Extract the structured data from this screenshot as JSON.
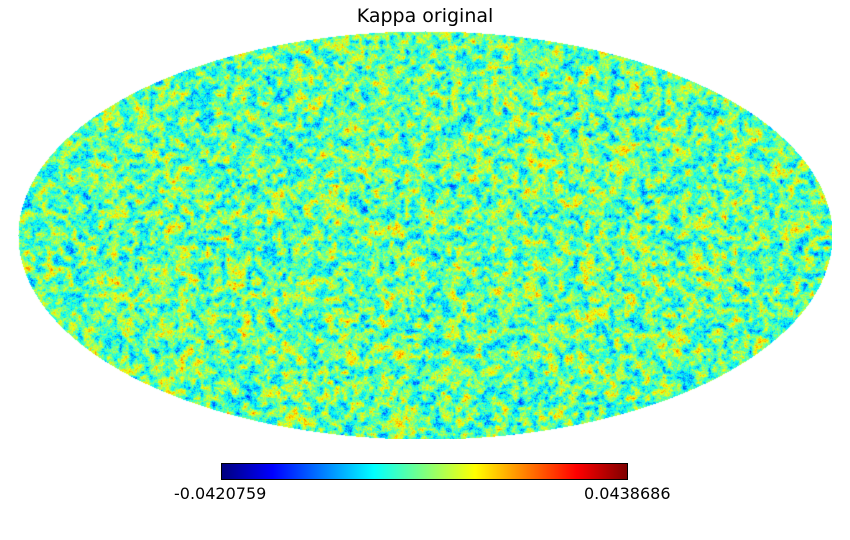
{
  "chart_data": {
    "type": "heatmap",
    "projection": "mollweide",
    "title": "Kappa original",
    "colormap": "jet",
    "colorbar": {
      "min_label": "-0.0420759",
      "max_label": "0.0438686",
      "min": -0.0420759,
      "max": 0.0438686,
      "orientation": "horizontal",
      "colors": [
        "#00007f",
        "#0000ff",
        "#007fff",
        "#00ffff",
        "#7fff7f",
        "#ffff00",
        "#ff7f00",
        "#ff0000",
        "#7f0000"
      ]
    },
    "grid": false
  }
}
